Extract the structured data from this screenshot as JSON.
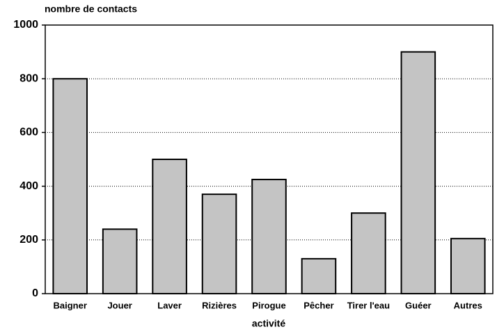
{
  "chart_data": {
    "type": "bar",
    "y_label": "nombre de contacts",
    "x_label": "activité",
    "categories": [
      "Baigner",
      "Jouer",
      "Laver",
      "Rizières",
      "Pirogue",
      "Pêcher",
      "Tirer l'eau",
      "Guéer",
      "Autres"
    ],
    "values": [
      800,
      240,
      500,
      370,
      425,
      130,
      300,
      900,
      205
    ],
    "color": "#c4c4c4",
    "ylim": [
      0,
      1000
    ],
    "yticks": [
      0,
      200,
      400,
      600,
      800,
      1000
    ],
    "grid": true
  }
}
